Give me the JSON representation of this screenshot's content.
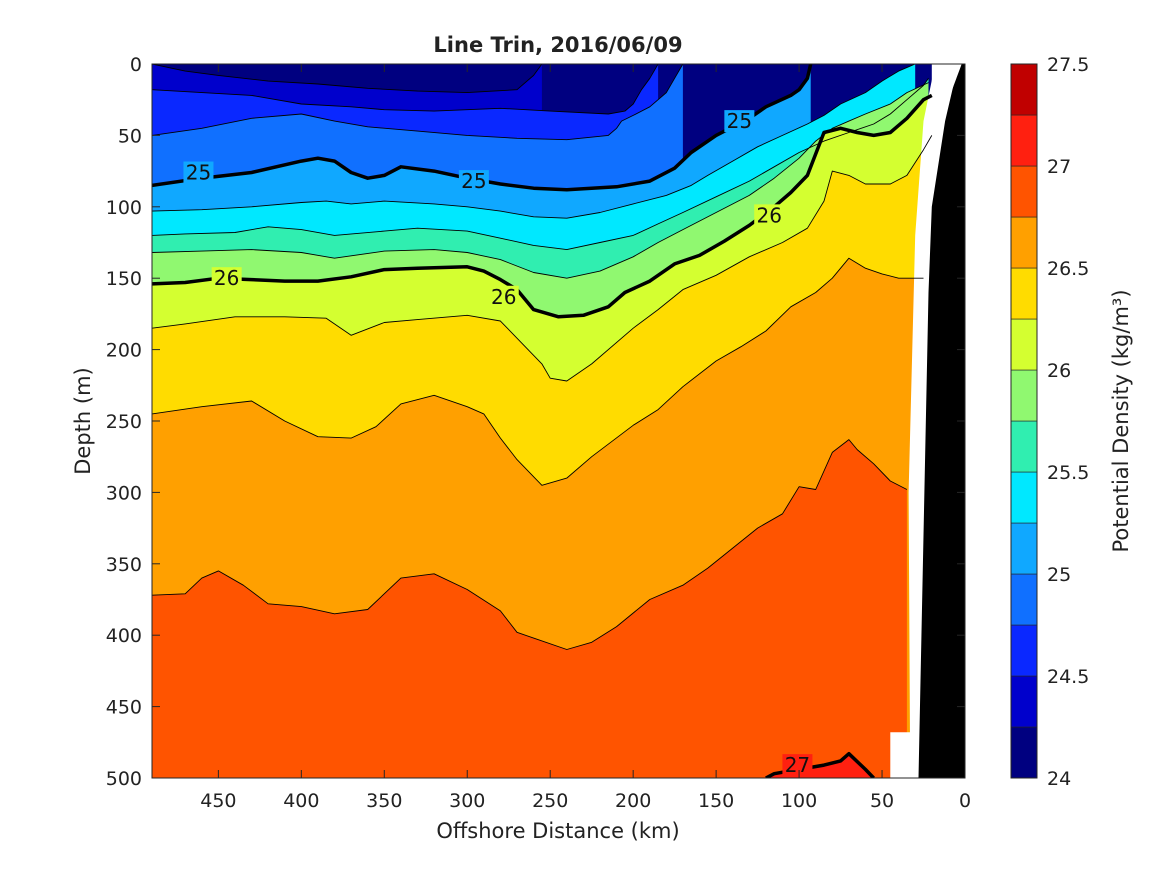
{
  "chart_data": {
    "type": "filled-contour",
    "title": "Line Trin, 2016/06/09",
    "xlabel": "Offshore Distance (km)",
    "ylabel": "Depth (m)",
    "colorbar_label": "Potential Density (kg/m³)",
    "xlim": [
      490,
      0
    ],
    "ylim": [
      0,
      500
    ],
    "x_reversed": true,
    "y_reversed": true,
    "x_ticks": [
      "450",
      "400",
      "350",
      "300",
      "250",
      "200",
      "150",
      "100",
      "50",
      "0"
    ],
    "x_tick_values": [
      450,
      400,
      350,
      300,
      250,
      200,
      150,
      100,
      50,
      0
    ],
    "y_ticks": [
      "0",
      "50",
      "100",
      "150",
      "200",
      "250",
      "300",
      "350",
      "400",
      "450",
      "500"
    ],
    "y_tick_values": [
      0,
      50,
      100,
      150,
      200,
      250,
      300,
      350,
      400,
      450,
      500
    ],
    "levels": [
      24.0,
      24.25,
      24.5,
      24.75,
      25.0,
      25.25,
      25.5,
      25.75,
      26.0,
      26.25,
      26.5,
      26.75,
      27.0,
      27.25,
      27.5
    ],
    "colorbar_ticks": [
      "24",
      "24.5",
      "25",
      "25.5",
      "26",
      "26.5",
      "27",
      "27.5"
    ],
    "colorbar_tick_values": [
      24,
      24.5,
      25,
      25.5,
      26,
      26.5,
      27,
      27.5
    ],
    "colors": [
      "#000080",
      "#0000cc",
      "#0a28ff",
      "#1070ff",
      "#10a8ff",
      "#00e8ff",
      "#30eeb0",
      "#90f870",
      "#d4ff30",
      "#ffdc00",
      "#ffa000",
      "#ff5400",
      "#ff2010",
      "#c00000"
    ],
    "isopycnals": [
      {
        "value": 24.25,
        "points": [
          [
            490,
            0
          ],
          [
            470,
            5
          ],
          [
            450,
            8
          ],
          [
            420,
            12
          ],
          [
            390,
            14
          ],
          [
            360,
            17
          ],
          [
            330,
            19
          ],
          [
            300,
            20
          ],
          [
            270,
            18
          ],
          [
            260,
            8
          ],
          [
            255,
            0
          ]
        ]
      },
      {
        "value": 24.5,
        "points": [
          [
            490,
            18
          ],
          [
            460,
            20
          ],
          [
            430,
            22
          ],
          [
            400,
            28
          ],
          [
            370,
            30
          ],
          [
            350,
            32
          ],
          [
            320,
            33
          ],
          [
            300,
            32
          ],
          [
            280,
            31
          ],
          [
            250,
            33
          ],
          [
            215,
            35
          ],
          [
            205,
            33
          ],
          [
            200,
            28
          ],
          [
            195,
            18
          ],
          [
            190,
            10
          ],
          [
            185,
            0
          ]
        ]
      },
      {
        "value": 24.75,
        "points": [
          [
            490,
            50
          ],
          [
            460,
            45
          ],
          [
            430,
            38
          ],
          [
            400,
            35
          ],
          [
            380,
            40
          ],
          [
            360,
            44
          ],
          [
            330,
            47
          ],
          [
            300,
            50
          ],
          [
            270,
            52
          ],
          [
            240,
            53
          ],
          [
            215,
            50
          ],
          [
            210,
            45
          ],
          [
            207,
            40
          ],
          [
            200,
            36
          ],
          [
            190,
            30
          ],
          [
            180,
            20
          ],
          [
            175,
            10
          ],
          [
            170,
            0
          ]
        ]
      },
      {
        "value": 25.0,
        "points": [
          [
            490,
            85
          ],
          [
            460,
            80
          ],
          [
            430,
            76
          ],
          [
            400,
            68
          ],
          [
            390,
            66
          ],
          [
            380,
            68
          ],
          [
            370,
            76
          ],
          [
            360,
            80
          ],
          [
            350,
            78
          ],
          [
            340,
            72
          ],
          [
            320,
            75
          ],
          [
            300,
            80
          ],
          [
            280,
            84
          ],
          [
            260,
            87
          ],
          [
            240,
            88
          ],
          [
            210,
            86
          ],
          [
            190,
            82
          ],
          [
            175,
            73
          ],
          [
            165,
            62
          ],
          [
            150,
            50
          ],
          [
            130,
            38
          ],
          [
            120,
            30
          ],
          [
            105,
            22
          ],
          [
            100,
            18
          ],
          [
            95,
            10
          ],
          [
            93,
            0
          ]
        ]
      },
      {
        "value": 25.25,
        "points": [
          [
            490,
            103
          ],
          [
            460,
            102
          ],
          [
            430,
            100
          ],
          [
            400,
            97
          ],
          [
            385,
            96
          ],
          [
            370,
            98
          ],
          [
            350,
            96
          ],
          [
            320,
            98
          ],
          [
            300,
            100
          ],
          [
            280,
            103
          ],
          [
            260,
            107
          ],
          [
            240,
            108
          ],
          [
            220,
            104
          ],
          [
            200,
            98
          ],
          [
            180,
            92
          ],
          [
            165,
            85
          ],
          [
            155,
            78
          ],
          [
            140,
            68
          ],
          [
            125,
            58
          ],
          [
            110,
            50
          ],
          [
            95,
            42
          ],
          [
            85,
            36
          ],
          [
            75,
            28
          ],
          [
            60,
            20
          ],
          [
            50,
            12
          ],
          [
            40,
            5
          ],
          [
            30,
            0
          ]
        ]
      },
      {
        "value": 25.5,
        "points": [
          [
            490,
            120
          ],
          [
            470,
            119
          ],
          [
            440,
            118
          ],
          [
            420,
            114
          ],
          [
            400,
            116
          ],
          [
            380,
            120
          ],
          [
            350,
            117
          ],
          [
            330,
            115
          ],
          [
            300,
            117
          ],
          [
            280,
            122
          ],
          [
            260,
            127
          ],
          [
            240,
            130
          ],
          [
            220,
            125
          ],
          [
            200,
            120
          ],
          [
            185,
            112
          ],
          [
            170,
            104
          ],
          [
            150,
            93
          ],
          [
            130,
            82
          ],
          [
            115,
            72
          ],
          [
            100,
            62
          ],
          [
            85,
            54
          ],
          [
            70,
            48
          ],
          [
            55,
            42
          ],
          [
            45,
            35
          ],
          [
            35,
            25
          ],
          [
            25,
            15
          ],
          [
            22,
            10
          ]
        ]
      },
      {
        "value": 25.75,
        "points": [
          [
            490,
            132
          ],
          [
            460,
            131
          ],
          [
            430,
            130
          ],
          [
            400,
            132
          ],
          [
            380,
            136
          ],
          [
            350,
            131
          ],
          [
            320,
            130
          ],
          [
            300,
            132
          ],
          [
            280,
            137
          ],
          [
            260,
            146
          ],
          [
            240,
            150
          ],
          [
            220,
            145
          ],
          [
            200,
            135
          ],
          [
            185,
            125
          ],
          [
            170,
            116
          ],
          [
            150,
            104
          ],
          [
            130,
            92
          ],
          [
            115,
            80
          ],
          [
            100,
            66
          ],
          [
            90,
            54
          ],
          [
            80,
            45
          ],
          [
            70,
            40
          ],
          [
            60,
            35
          ],
          [
            45,
            28
          ],
          [
            35,
            20
          ],
          [
            22,
            13
          ]
        ]
      },
      {
        "value": 26.0,
        "points": [
          [
            490,
            154
          ],
          [
            470,
            153
          ],
          [
            450,
            150
          ],
          [
            430,
            151
          ],
          [
            410,
            152
          ],
          [
            390,
            152
          ],
          [
            370,
            149
          ],
          [
            350,
            144
          ],
          [
            330,
            143
          ],
          [
            300,
            142
          ],
          [
            290,
            145
          ],
          [
            280,
            151
          ],
          [
            270,
            158
          ],
          [
            260,
            172
          ],
          [
            245,
            177
          ],
          [
            230,
            176
          ],
          [
            215,
            170
          ],
          [
            205,
            160
          ],
          [
            190,
            152
          ],
          [
            175,
            140
          ],
          [
            160,
            134
          ],
          [
            145,
            124
          ],
          [
            130,
            113
          ],
          [
            115,
            100
          ],
          [
            105,
            90
          ],
          [
            95,
            78
          ],
          [
            85,
            48
          ],
          [
            75,
            45
          ],
          [
            65,
            48
          ],
          [
            55,
            50
          ],
          [
            45,
            48
          ],
          [
            35,
            38
          ],
          [
            25,
            25
          ],
          [
            20,
            22
          ]
        ]
      },
      {
        "value": 26.25,
        "points": [
          [
            490,
            185
          ],
          [
            470,
            182
          ],
          [
            440,
            177
          ],
          [
            410,
            177
          ],
          [
            385,
            178
          ],
          [
            370,
            190
          ],
          [
            350,
            181
          ],
          [
            330,
            179
          ],
          [
            300,
            176
          ],
          [
            280,
            180
          ],
          [
            270,
            192
          ],
          [
            255,
            210
          ],
          [
            250,
            220
          ],
          [
            240,
            222
          ],
          [
            225,
            210
          ],
          [
            200,
            185
          ],
          [
            185,
            172
          ],
          [
            170,
            158
          ],
          [
            150,
            148
          ],
          [
            130,
            135
          ],
          [
            110,
            125
          ],
          [
            95,
            115
          ],
          [
            85,
            96
          ],
          [
            80,
            75
          ],
          [
            70,
            78
          ],
          [
            60,
            84
          ],
          [
            45,
            84
          ],
          [
            35,
            78
          ],
          [
            25,
            60
          ],
          [
            20,
            50
          ]
        ]
      },
      {
        "value": 26.5,
        "points": [
          [
            490,
            245
          ],
          [
            460,
            240
          ],
          [
            430,
            236
          ],
          [
            410,
            250
          ],
          [
            390,
            261
          ],
          [
            370,
            262
          ],
          [
            355,
            254
          ],
          [
            340,
            238
          ],
          [
            320,
            232
          ],
          [
            300,
            240
          ],
          [
            290,
            245
          ],
          [
            280,
            262
          ],
          [
            270,
            277
          ],
          [
            255,
            295
          ],
          [
            240,
            290
          ],
          [
            225,
            275
          ],
          [
            200,
            253
          ],
          [
            185,
            242
          ],
          [
            170,
            226
          ],
          [
            150,
            208
          ],
          [
            135,
            198
          ],
          [
            120,
            187
          ],
          [
            105,
            170
          ],
          [
            90,
            160
          ],
          [
            80,
            150
          ],
          [
            70,
            136
          ],
          [
            60,
            143
          ],
          [
            50,
            147
          ],
          [
            40,
            150
          ],
          [
            30,
            150
          ],
          [
            25,
            150
          ]
        ]
      },
      {
        "value": 26.75,
        "points": [
          [
            490,
            372
          ],
          [
            470,
            371
          ],
          [
            460,
            360
          ],
          [
            450,
            355
          ],
          [
            435,
            365
          ],
          [
            420,
            378
          ],
          [
            400,
            380
          ],
          [
            380,
            385
          ],
          [
            360,
            382
          ],
          [
            340,
            360
          ],
          [
            320,
            357
          ],
          [
            300,
            368
          ],
          [
            280,
            383
          ],
          [
            270,
            398
          ],
          [
            260,
            402
          ],
          [
            240,
            410
          ],
          [
            225,
            405
          ],
          [
            210,
            394
          ],
          [
            190,
            375
          ],
          [
            170,
            365
          ],
          [
            155,
            353
          ],
          [
            140,
            339
          ],
          [
            125,
            325
          ],
          [
            110,
            315
          ],
          [
            100,
            296
          ],
          [
            90,
            298
          ],
          [
            80,
            272
          ],
          [
            70,
            263
          ],
          [
            65,
            270
          ],
          [
            55,
            280
          ],
          [
            45,
            292
          ],
          [
            35,
            298
          ]
        ]
      },
      {
        "value": 27.0,
        "points": [
          [
            120,
            500
          ],
          [
            115,
            497
          ],
          [
            100,
            494
          ],
          [
            85,
            491
          ],
          [
            75,
            488
          ],
          [
            70,
            483
          ],
          [
            60,
            494
          ],
          [
            55,
            500
          ]
        ]
      }
    ],
    "contour_labels": [
      {
        "text": "25",
        "value": 25.0,
        "x": 462,
        "y": 76
      },
      {
        "text": "25",
        "value": 25.0,
        "x": 296,
        "y": 82
      },
      {
        "text": "25",
        "value": 25.0,
        "x": 136,
        "y": 40
      },
      {
        "text": "26",
        "value": 26.0,
        "x": 445,
        "y": 150
      },
      {
        "text": "26",
        "value": 26.0,
        "x": 278,
        "y": 163
      },
      {
        "text": "26",
        "value": 26.0,
        "x": 118,
        "y": 106
      },
      {
        "text": "27",
        "value": 27.0,
        "x": 101,
        "y": 491
      }
    ],
    "land_mask_color": "#000000",
    "no_data_color": "#ffffff"
  }
}
